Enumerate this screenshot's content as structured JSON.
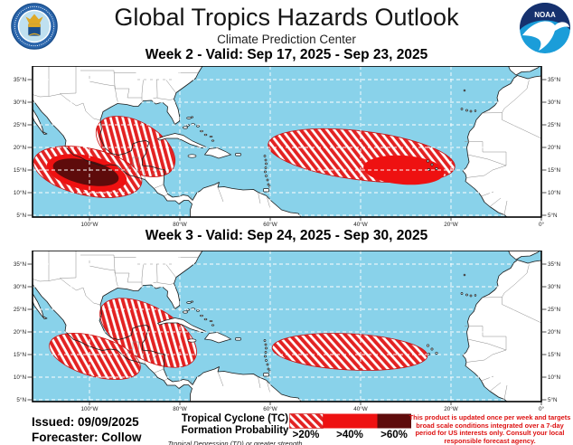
{
  "header": {
    "title": "Global Tropics Hazards Outlook",
    "subtitle": "Climate Prediction Center",
    "noaa_text": "NOAA"
  },
  "week2": {
    "heading": "Week 2 - Valid: Sep 17, 2025 - Sep 23, 2025",
    "hazards": [
      {
        "basin": "East Pacific off southern Mexico",
        "max_category": ">60%",
        "extent": "~112W-89W, 9N-19N"
      },
      {
        "basin": "Gulf of Mexico / NW Caribbean",
        "max_category": ">20%",
        "extent": "~97W-81W, 13N-26N"
      },
      {
        "basin": "Central and East Atlantic main development region",
        "max_category": ">40%",
        "extent": "~60W-18W, 10N-24N"
      }
    ]
  },
  "week3": {
    "heading": "Week 3 - Valid: Sep 24, 2025 - Sep 30, 2025",
    "hazards": [
      {
        "basin": "East Pacific off Mexico / Central America",
        "max_category": ">20%",
        "extent": "~108W-88W, 8N-19N"
      },
      {
        "basin": "Gulf of Mexico / W Caribbean",
        "max_category": ">20%",
        "extent": "~96W-76W, 12N-27N"
      },
      {
        "basin": "Central Atlantic main development region",
        "max_category": ">20%",
        "extent": "~59W-25W, 11N-19N"
      }
    ]
  },
  "map": {
    "lat_ticks": [
      {
        "v": 35,
        "label": "35°N"
      },
      {
        "v": 30,
        "label": "30°N"
      },
      {
        "v": 25,
        "label": "25°N"
      },
      {
        "v": 20,
        "label": "20°N"
      },
      {
        "v": 15,
        "label": "15°N"
      },
      {
        "v": 10,
        "label": "10°N"
      },
      {
        "v": 5,
        "label": "5°N"
      }
    ],
    "lon_ticks": [
      {
        "v": -100,
        "label": "100°W"
      },
      {
        "v": -80,
        "label": "80°W"
      },
      {
        "v": -60,
        "label": "60°W"
      },
      {
        "v": -40,
        "label": "40°W"
      },
      {
        "v": -20,
        "label": "20°W"
      },
      {
        "v": 0,
        "label": "0°"
      }
    ]
  },
  "legend": {
    "title_line1": "Tropical Cyclone (TC)",
    "title_line2": "Formation Probability",
    "subtitle": "Tropical Depression (TD) or greater strength",
    "labels": [
      ">20%",
      ">40%",
      ">60%"
    ]
  },
  "footer": {
    "issued": "Issued: 09/09/2025",
    "forecaster": "Forecaster: Collow",
    "disclaimer_lines": [
      "This product is updated once per week and targets",
      "broad scale conditions integrated over a 7-day",
      "period for US interests only. Consult your local",
      "responsible forecast agency."
    ]
  },
  "colors": {
    "ocean": "#89D2EA",
    "hatch_red": "#E32222",
    "solid_red": "#EE1111",
    "dark_red": "#5E0B0B",
    "disclaimer_red": "#DD1111"
  }
}
